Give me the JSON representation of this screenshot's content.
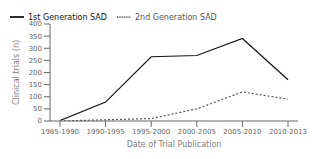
{
  "chart_data": {
    "type": "line",
    "categories": [
      "1985-1990",
      "1990-1995",
      "1995-2000",
      "2000-2005",
      "2005-2010",
      "2010-2013"
    ],
    "series": [
      {
        "name": "1st Generation SAD",
        "color": "#111111",
        "line_style": "solid",
        "values": [
          2,
          78,
          265,
          270,
          340,
          170
        ]
      },
      {
        "name": "2nd Generation SAD",
        "color": "#555555",
        "line_style": "dashed",
        "values": [
          0,
          5,
          10,
          50,
          120,
          90
        ]
      }
    ],
    "xlabel": "Date of Trial Publication",
    "ylabel": "Clinical trials (n)",
    "ylim": [
      0,
      400
    ],
    "yticks": [
      0,
      50,
      100,
      150,
      200,
      250,
      300,
      350,
      400
    ],
    "legend": "upper left",
    "grid": false
  }
}
